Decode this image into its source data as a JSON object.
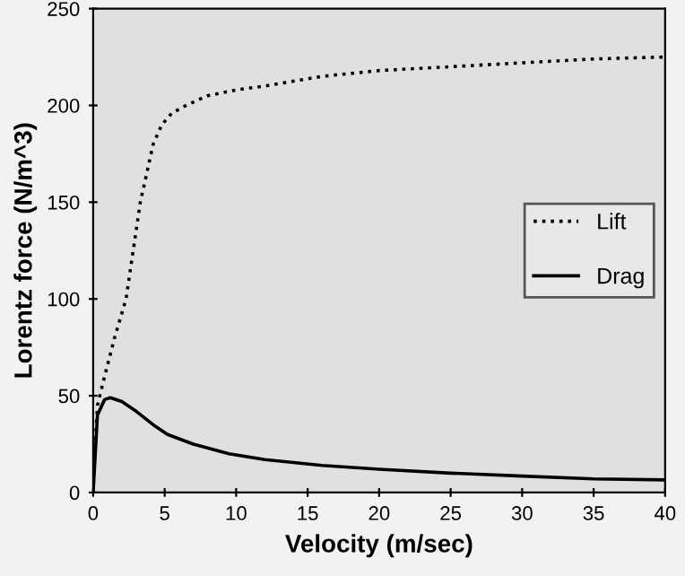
{
  "chart_data": {
    "type": "line",
    "xlabel": "Velocity (m/sec)",
    "ylabel": "Lorentz force (N/m^3)",
    "xlim": [
      0,
      40
    ],
    "ylim": [
      0,
      250
    ],
    "xticks": [
      0,
      5,
      10,
      15,
      20,
      25,
      30,
      35,
      40
    ],
    "yticks": [
      0,
      50,
      100,
      150,
      200,
      250
    ],
    "grid": false,
    "legend": "right",
    "series": [
      {
        "name": "Lift",
        "color": "#000000",
        "line_style": "dotted",
        "x": [
          0,
          0.3,
          0.8,
          1.5,
          2.3,
          3.3,
          4.2,
          4.8,
          5.5,
          6.5,
          8,
          10,
          12,
          16,
          20,
          25,
          30,
          35,
          40
        ],
        "values": [
          5,
          45,
          60,
          80,
          100,
          150,
          180,
          190,
          196,
          200,
          205,
          208,
          210,
          215,
          218,
          220,
          222,
          224,
          225
        ]
      },
      {
        "name": "Drag",
        "color": "#000000",
        "line_style": "solid",
        "x": [
          0,
          0.3,
          0.8,
          1.2,
          2,
          3,
          4.2,
          5.2,
          7,
          9.5,
          12,
          16,
          20,
          25,
          30,
          35,
          40
        ],
        "values": [
          0,
          40,
          48,
          49,
          47,
          42,
          35,
          30,
          25,
          20,
          17,
          14,
          12,
          10,
          8.5,
          7,
          6.5
        ]
      }
    ]
  }
}
